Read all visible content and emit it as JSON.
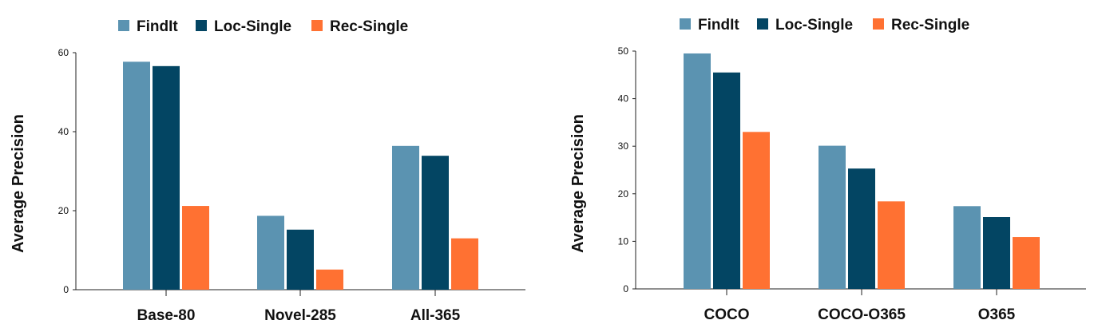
{
  "chart_data": [
    {
      "type": "bar",
      "ylabel": "Average Precision",
      "ylim": [
        0,
        60
      ],
      "yticks": [
        0,
        20,
        40,
        60
      ],
      "categories": [
        "Base-80",
        "Novel-285",
        "All-365"
      ],
      "legend": "top",
      "grid": false,
      "series": [
        {
          "name": "FindIt",
          "color": "#5b93b1",
          "values": [
            57.7,
            18.7,
            36.4
          ]
        },
        {
          "name": "Loc-Single",
          "color": "#034563",
          "values": [
            56.6,
            15.2,
            33.9
          ]
        },
        {
          "name": "Rec-Single",
          "color": "#ff7132",
          "values": [
            21.2,
            5.1,
            13.0
          ]
        }
      ]
    },
    {
      "type": "bar",
      "ylabel": "Average Precision",
      "ylim": [
        0,
        50
      ],
      "yticks": [
        0,
        10,
        20,
        30,
        40,
        50
      ],
      "categories": [
        "COCO",
        "COCO-O365",
        "O365"
      ],
      "legend": "top",
      "grid": false,
      "series": [
        {
          "name": "FindIt",
          "color": "#5b93b1",
          "values": [
            49.5,
            30.1,
            17.4
          ]
        },
        {
          "name": "Loc-Single",
          "color": "#034563",
          "values": [
            45.5,
            25.3,
            15.1
          ]
        },
        {
          "name": "Rec-Single",
          "color": "#ff7132",
          "values": [
            33.0,
            18.4,
            10.9
          ]
        }
      ]
    }
  ]
}
